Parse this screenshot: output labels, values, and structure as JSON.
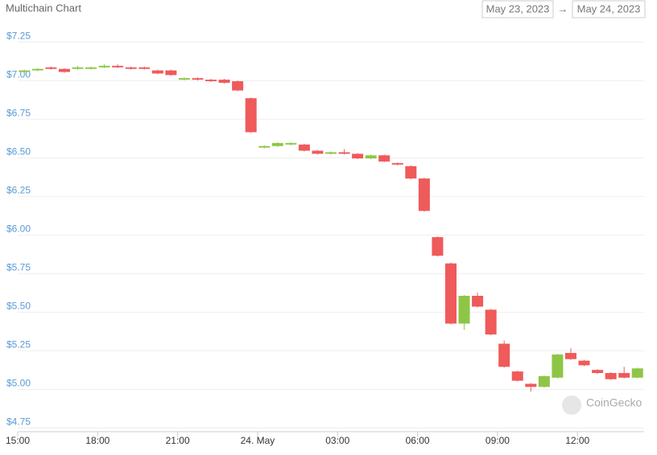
{
  "chart_data": {
    "type": "candlestick",
    "title": "Multichain Chart",
    "date_from": "May 23, 2023",
    "date_to": "May 24, 2023",
    "watermark": "CoinGecko",
    "x": [
      0.25,
      0.75,
      1.25,
      1.75,
      2.25,
      2.75,
      3.25,
      3.75,
      4.25,
      4.75,
      5.25,
      5.75,
      6.25,
      6.75,
      7.25,
      7.75,
      8.25,
      8.75,
      9.25,
      9.75,
      10.25,
      10.75,
      11.25,
      11.75,
      12.25,
      12.75,
      13.25,
      13.75,
      14.25,
      14.75,
      15.25,
      15.75,
      16.25,
      16.75,
      17.25,
      17.75,
      18.25,
      18.75,
      19.25,
      19.75,
      20.25,
      20.75,
      21.25,
      21.75,
      22.25,
      22.75,
      23.25
    ],
    "open": [
      7.03,
      7.04,
      7.06,
      7.05,
      7.05,
      7.05,
      7.06,
      7.07,
      7.06,
      7.06,
      7.04,
      7.04,
      6.98,
      6.99,
      6.98,
      6.98,
      6.97,
      6.86,
      6.54,
      6.55,
      6.56,
      6.56,
      6.52,
      6.5,
      6.51,
      6.5,
      6.47,
      6.49,
      6.44,
      6.42,
      6.34,
      5.96,
      5.79,
      5.4,
      5.58,
      5.49,
      5.27,
      5.09,
      5.01,
      4.99,
      5.05,
      5.21,
      5.16,
      5.1,
      5.08,
      5.08,
      5.05
    ],
    "close": [
      7.04,
      7.05,
      7.05,
      7.03,
      7.06,
      7.06,
      7.07,
      7.06,
      7.05,
      7.05,
      7.02,
      7.01,
      6.99,
      6.98,
      6.97,
      6.96,
      6.91,
      6.64,
      6.55,
      6.57,
      6.57,
      6.52,
      6.5,
      6.51,
      6.5,
      6.47,
      6.49,
      6.45,
      6.43,
      6.34,
      6.13,
      5.84,
      5.4,
      5.58,
      5.51,
      5.33,
      5.12,
      5.03,
      4.99,
      5.06,
      5.2,
      5.17,
      5.13,
      5.08,
      5.04,
      5.05,
      5.11
    ],
    "high": [
      7.045,
      7.055,
      7.065,
      7.055,
      7.07,
      7.065,
      7.08,
      7.08,
      7.065,
      7.065,
      7.045,
      7.045,
      6.995,
      6.995,
      6.985,
      6.985,
      6.975,
      6.865,
      6.555,
      6.575,
      6.575,
      6.565,
      6.525,
      6.515,
      6.53,
      6.505,
      6.495,
      6.495,
      6.445,
      6.425,
      6.345,
      5.965,
      5.795,
      5.585,
      5.6,
      5.495,
      5.29,
      5.095,
      5.015,
      5.065,
      5.205,
      5.24,
      5.165,
      5.105,
      5.085,
      5.12,
      5.115
    ],
    "low": [
      7.025,
      7.035,
      7.045,
      7.025,
      7.045,
      7.045,
      7.055,
      7.055,
      7.045,
      7.045,
      7.015,
      7.005,
      6.975,
      6.975,
      6.965,
      6.955,
      6.905,
      6.635,
      6.535,
      6.545,
      6.555,
      6.515,
      6.495,
      6.495,
      6.495,
      6.465,
      6.465,
      6.445,
      6.425,
      6.335,
      6.125,
      5.835,
      5.395,
      5.36,
      5.505,
      5.325,
      5.115,
      5.025,
      4.96,
      4.985,
      5.045,
      5.165,
      5.125,
      5.075,
      5.035,
      5.045,
      5.045
    ],
    "up_color": "#8dc647",
    "down_color": "#ef5a5a",
    "xlim": [
      0,
      23.5
    ],
    "xticks": [
      {
        "value": 0,
        "label": "15:00"
      },
      {
        "value": 3,
        "label": "18:00"
      },
      {
        "value": 6,
        "label": "21:00"
      },
      {
        "value": 9,
        "label": "24. May"
      },
      {
        "value": 12,
        "label": "03:00"
      },
      {
        "value": 15,
        "label": "06:00"
      },
      {
        "value": 18,
        "label": "09:00"
      },
      {
        "value": 21,
        "label": "12:00"
      }
    ],
    "ylim": [
      4.7,
      7.34
    ],
    "yticks": [
      {
        "value": 4.75,
        "label": "$4.75"
      },
      {
        "value": 5,
        "label": "$5.00"
      },
      {
        "value": 5.25,
        "label": "$5.25"
      },
      {
        "value": 5.5,
        "label": "$5.50"
      },
      {
        "value": 5.75,
        "label": "$5.75"
      },
      {
        "value": 6,
        "label": "$6.00"
      },
      {
        "value": 6.25,
        "label": "$6.25"
      },
      {
        "value": 6.5,
        "label": "$6.50"
      },
      {
        "value": 6.75,
        "label": "$6.75"
      },
      {
        "value": 7,
        "label": "$7.00"
      },
      {
        "value": 7.25,
        "label": "$7.25"
      }
    ],
    "grid": true
  }
}
